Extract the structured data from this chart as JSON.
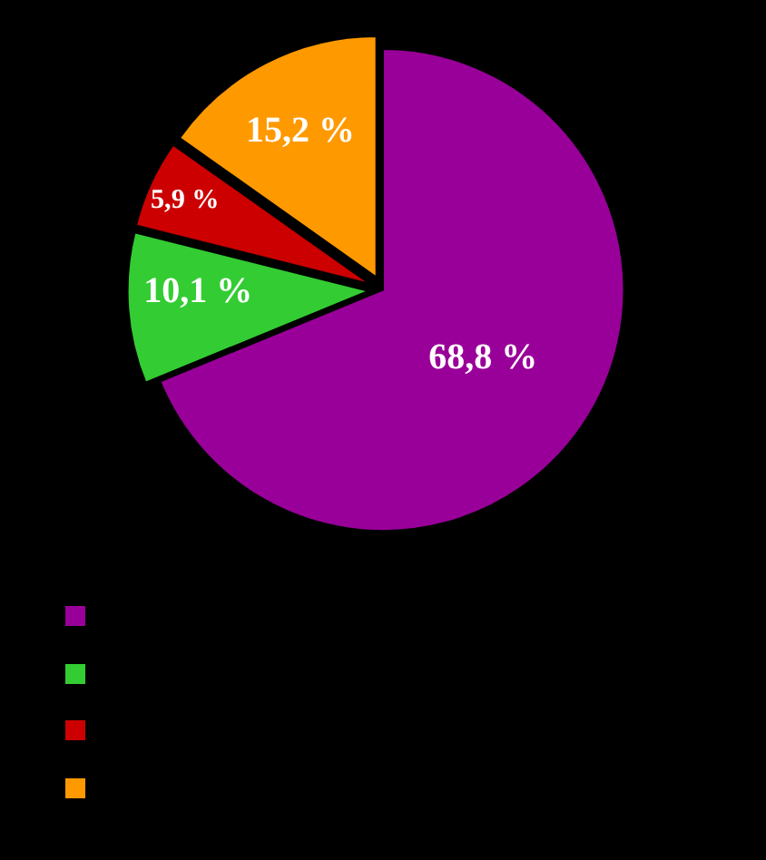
{
  "chart_data": {
    "type": "pie",
    "categories": [
      null,
      null,
      null,
      null
    ],
    "values": [
      68.8,
      10.1,
      5.9,
      15.2
    ],
    "value_labels": [
      "68,8 %",
      "10,1 %",
      "5,9 %",
      "15,2 %"
    ],
    "colors": [
      "#990099",
      "#33cc33",
      "#cc0000",
      "#ff9900"
    ]
  }
}
